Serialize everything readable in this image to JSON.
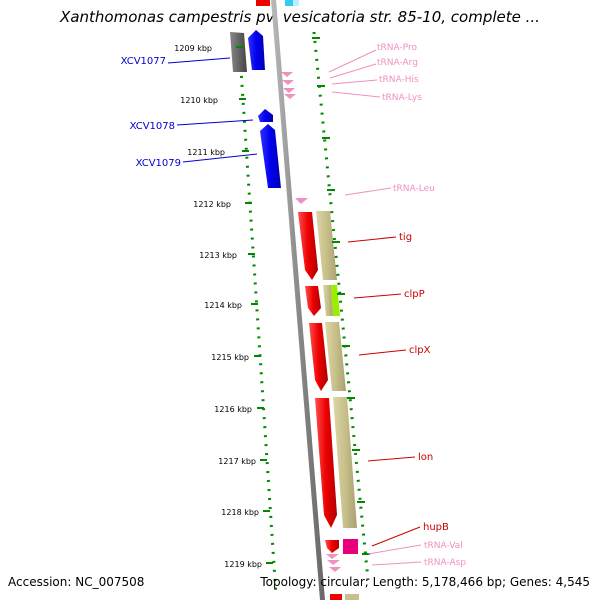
{
  "title": "Xanthomonas campestris pv. vesicatoria str. 85-10, complete ...",
  "footer": {
    "accession": "Accession: NC_007508",
    "summary": "Topology: circular; Length: 5,178,466 bp; Genes: 4,545"
  },
  "ticks": [
    {
      "label": "1209 kbp"
    },
    {
      "label": "1210 kbp"
    },
    {
      "label": "1211 kbp"
    },
    {
      "label": "1212 kbp"
    },
    {
      "label": "1213 kbp"
    },
    {
      "label": "1214 kbp"
    },
    {
      "label": "1215 kbp"
    },
    {
      "label": "1216 kbp"
    },
    {
      "label": "1217 kbp"
    },
    {
      "label": "1218 kbp"
    },
    {
      "label": "1219 kbp"
    }
  ],
  "left_labels": [
    {
      "text": "XCV1077",
      "color": "#0000cc"
    },
    {
      "text": "XCV1078",
      "color": "#0000cc"
    },
    {
      "text": "XCV1079",
      "color": "#0000cc"
    }
  ],
  "right_labels": [
    {
      "text": "tRNA-Pro",
      "color": "#f090c0"
    },
    {
      "text": "tRNA-Arg",
      "color": "#f090c0"
    },
    {
      "text": "tRNA-His",
      "color": "#f090c0"
    },
    {
      "text": "tRNA-Lys",
      "color": "#f090c0"
    },
    {
      "text": "tRNA-Leu",
      "color": "#f090c0"
    },
    {
      "text": "tig",
      "color": "#cc0000"
    },
    {
      "text": "clpP",
      "color": "#cc0000"
    },
    {
      "text": "clpX",
      "color": "#cc0000"
    },
    {
      "text": "lon",
      "color": "#cc0000"
    },
    {
      "text": "hupB",
      "color": "#cc0000"
    },
    {
      "text": "tRNA-Val",
      "color": "#f090c0"
    },
    {
      "text": "tRNA-Asp",
      "color": "#f090c0"
    }
  ],
  "colors": {
    "tick_green": "#008800",
    "backbone": "#8a8a8a",
    "gene_red": "#ee0000",
    "gene_blue": "#0000ee",
    "gene_gray": "#666666",
    "cog_khaki": "#c8c08a",
    "cog_lime": "#99ee00",
    "trna_pink": "#f090c0",
    "magenta": "#e8007a"
  }
}
